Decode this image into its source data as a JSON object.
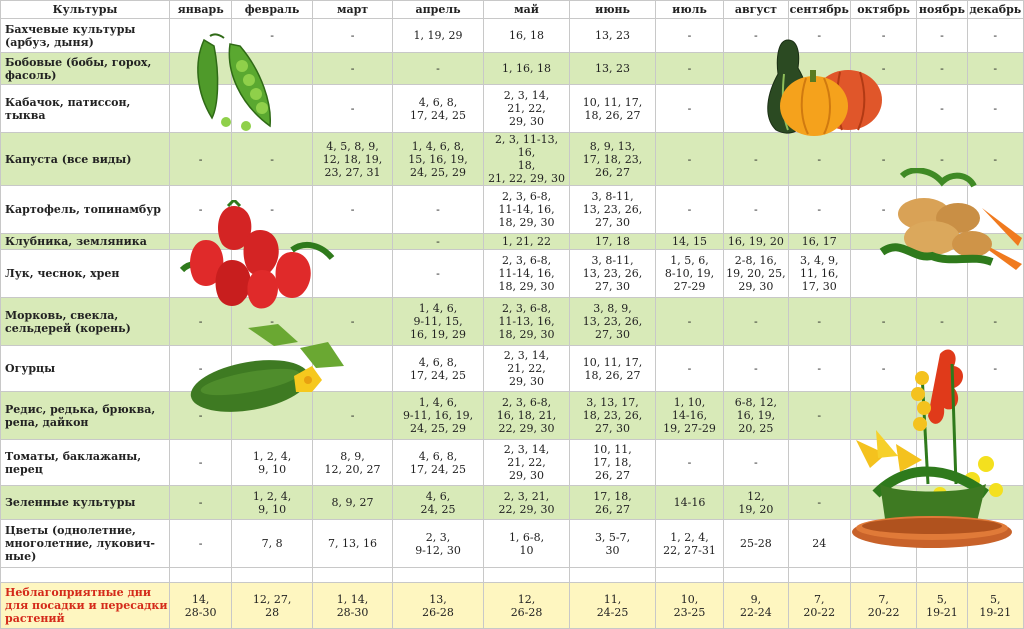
{
  "columns": [
    "Культуры",
    "январь",
    "февраль",
    "март",
    "апрель",
    "май",
    "июнь",
    "июль",
    "август",
    "сентябрь",
    "октябрь",
    "ноябрь",
    "декабрь"
  ],
  "rows": [
    {
      "crop": "Бахчевые культуры\n(арбуз, дыня)",
      "cells": [
        "",
        "-",
        "-",
        "1, 19, 29",
        "16, 18",
        "13, 23",
        "-",
        "-",
        "-",
        "-",
        "-",
        "-"
      ]
    },
    {
      "crop": "Бобовые (бобы, горох,\nфасоль)",
      "cells": [
        "",
        "",
        "-",
        "-",
        "1, 16, 18",
        "13, 23",
        "-",
        "",
        "",
        "-",
        "-",
        "-"
      ]
    },
    {
      "crop": "Кабачок, патиссон,\nтыква",
      "cells": [
        "",
        "",
        "-",
        "4, 6, 8,\n17, 24, 25",
        "2, 3, 14,\n21, 22,\n29, 30",
        "10, 11, 17,\n18, 26, 27",
        "-",
        "",
        "",
        "",
        "-",
        "-"
      ]
    },
    {
      "crop": "Капуста (все виды)",
      "cells": [
        "-",
        "-",
        "4, 5, 8, 9,\n12, 18, 19,\n23, 27, 31",
        "1, 4, 6, 8,\n15, 16, 19,\n24, 25, 29",
        "2, 3, 11-13, 16,\n18,\n21, 22, 29, 30",
        "8, 9, 13,\n17, 18, 23,\n26, 27",
        "-",
        "-",
        "-",
        "-",
        "-",
        "-"
      ]
    },
    {
      "crop": "Картофель, топинамбур",
      "cells": [
        "-",
        "-",
        "-",
        "-",
        "2, 3, 6-8,\n11-14, 16,\n18, 29, 30",
        "3, 8-11,\n13, 23, 26,\n27, 30",
        "-",
        "-",
        "-",
        "-",
        "",
        ""
      ]
    },
    {
      "crop": "Клубника, земляника",
      "cells": [
        "",
        "",
        "",
        "-",
        "1, 21, 22",
        "17, 18",
        "14, 15",
        "16, 19, 20",
        "16, 17",
        "",
        "",
        ""
      ]
    },
    {
      "crop": "Лук, чеснок, хрен",
      "cells": [
        "",
        "",
        "",
        "-",
        "2, 3, 6-8,\n11-14, 16,\n18, 29, 30",
        "3, 8-11,\n13, 23, 26,\n27, 30",
        "1, 5, 6,\n8-10, 19,\n27-29",
        "2-8, 16,\n19, 20, 25,\n29, 30",
        "3, 4, 9,\n11, 16,\n17, 30",
        "",
        "",
        ""
      ]
    },
    {
      "crop": "Морковь, свекла,\nсельдерей (корень)",
      "cells": [
        "-",
        "-",
        "-",
        "1, 4, 6,\n9-11, 15,\n16, 19, 29",
        "2, 3, 6-8,\n11-13, 16,\n18, 29, 30",
        "3, 8, 9,\n13, 23, 26,\n27, 30",
        "-",
        "-",
        "-",
        "-",
        "-",
        "-"
      ]
    },
    {
      "crop": "Огурцы",
      "cells": [
        "-",
        "",
        "",
        "4, 6, 8,\n17, 24, 25",
        "2, 3, 14,\n21, 22,\n29, 30",
        "10, 11, 17,\n18, 26, 27",
        "-",
        "-",
        "-",
        "-",
        "-",
        "-"
      ]
    },
    {
      "crop": "Редис,  редька,  брюква,\nрепа,  дайкон",
      "cells": [
        "-",
        "",
        "-",
        "1, 4, 6,\n9-11, 16, 19,\n24, 25, 29",
        "2, 3, 6-8,\n16, 18, 21,\n22, 29, 30",
        "3, 13, 17,\n18, 23, 26,\n27, 30",
        "1, 10,\n14-16,\n19, 27-29",
        "6-8, 12,\n16, 19,\n20, 25",
        "-",
        "",
        "",
        ""
      ]
    },
    {
      "crop": "Томаты, баклажаны,\nперец",
      "cells": [
        "-",
        "1, 2, 4,\n9, 10",
        "8, 9,\n12, 20, 27",
        "4, 6, 8,\n17, 24, 25",
        "2, 3, 14,\n21, 22,\n29, 30",
        "10, 11,\n17, 18,\n26, 27",
        "-",
        "-",
        "",
        "",
        "",
        ""
      ]
    },
    {
      "crop": "Зеленные культуры",
      "cells": [
        "-",
        "1, 2, 4,\n9, 10",
        "8, 9, 27",
        "4, 6,\n24, 25",
        "2, 3, 21,\n22, 29, 30",
        "17, 18,\n26, 27",
        "14-16",
        "12,\n19, 20",
        "-",
        "",
        "",
        ""
      ]
    },
    {
      "crop": "Цветы (однолетние,\nмноголетние,  лукович-\nные)",
      "cells": [
        "-",
        "7, 8",
        "7, 13, 16",
        "2, 3,\n9-12, 30",
        "1, 6-8,\n10",
        "3, 5-7,\n30",
        "1, 2, 4,\n22, 27-31",
        "25-28",
        "24",
        "",
        "",
        ""
      ]
    }
  ],
  "unfavorable": {
    "label": "Неблагоприятные дни\nдля посадки и пересадки\nрастений",
    "cells": [
      "14,\n28-30",
      "12,  27,\n28",
      "1,  14,\n28-30",
      "13,\n26-28",
      "12,\n26-28",
      "11,\n24-25",
      "10,\n23-25",
      "9,\n22-24",
      "7,\n20-22",
      "7,\n20-22",
      "5,\n19-21",
      "5,\n19-21"
    ]
  },
  "colors": {
    "green_row": "#d8eab8",
    "white_row": "#ffffff",
    "unfavorable_row": "#fef6c0",
    "unfavorable_label": "#d42a1a"
  },
  "illustrations": [
    "peas-image",
    "squash-pumpkin-image",
    "potato-carrot-image",
    "strawberry-image",
    "cucumber-image",
    "flower-basket-image"
  ]
}
